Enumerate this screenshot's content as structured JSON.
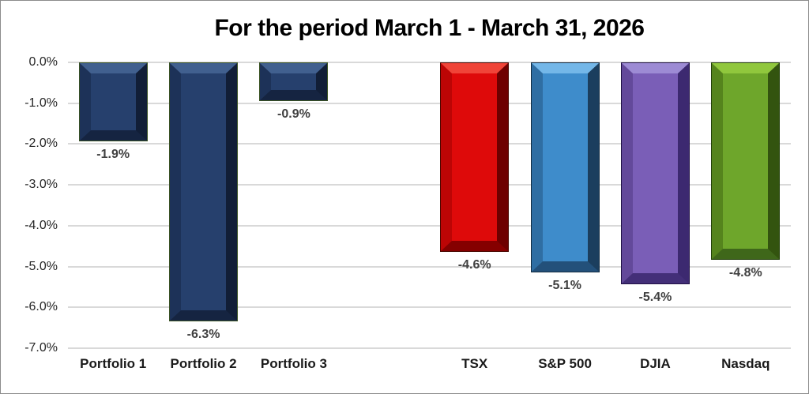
{
  "chart_data": {
    "type": "bar",
    "title": "For the period March 1 - March 31, 2026",
    "xlabel": "",
    "ylabel": "",
    "ylim": [
      -7.0,
      0.0
    ],
    "y_tick_step": 1.0,
    "y_tick_labels": [
      "0.0%",
      "-1.0%",
      "-2.0%",
      "-3.0%",
      "-4.0%",
      "-5.0%",
      "-6.0%",
      "-7.0%"
    ],
    "grid": true,
    "legend": "none",
    "categories": [
      "Portfolio 1",
      "Portfolio 2",
      "Portfolio 3",
      "",
      "TSX",
      "S&P 500",
      "DJIA",
      "Nasdaq"
    ],
    "values": [
      -1.9,
      -6.3,
      -0.9,
      null,
      -4.6,
      -5.1,
      -5.4,
      -4.8
    ],
    "data_labels": [
      "-1.9%",
      "-6.3%",
      "-0.9%",
      null,
      "-4.6%",
      "-5.1%",
      "-5.4%",
      "-4.8%"
    ],
    "color_keys": [
      "navy",
      "navy",
      "navy",
      null,
      "red",
      "blue",
      "purple",
      "green"
    ],
    "palette": {
      "navy": {
        "base": "#26406D",
        "top": "#41608F",
        "left": "#1D3258",
        "right": "#111E37",
        "bottom": "#152441",
        "outline": "#3A5323"
      },
      "red": {
        "base": "#DE0A0A",
        "top": "#F04438",
        "left": "#BC0505",
        "right": "#6E0000",
        "bottom": "#850000",
        "outline": "#4A0600"
      },
      "blue": {
        "base": "#3E8CCB",
        "top": "#74B7E8",
        "left": "#2F6EA3",
        "right": "#1B3E5E",
        "bottom": "#23507A",
        "outline": "#132C42"
      },
      "purple": {
        "base": "#7A5EB7",
        "top": "#9D8BD4",
        "left": "#63499A",
        "right": "#3C2970",
        "bottom": "#432F78",
        "outline": "#201145"
      },
      "green": {
        "base": "#6EA62B",
        "top": "#90C73D",
        "left": "#55841D",
        "right": "#33540F",
        "bottom": "#3F671A",
        "outline": "#23400A"
      }
    },
    "style_colors": {
      "gridline": "#D9D9D9",
      "title_text": "#000000",
      "axis_text": "#262626",
      "data_label_text": "#404040",
      "category_text": "#1A1A1A",
      "frame_border": "#8C8C8C",
      "background": "#FFFFFF"
    }
  }
}
